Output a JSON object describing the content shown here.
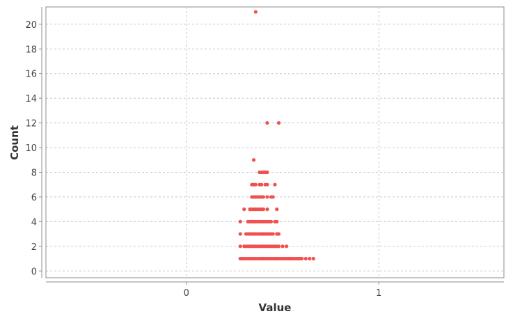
{
  "chart_data": {
    "type": "scatter",
    "title": "",
    "xlabel": "Value",
    "ylabel": "Count",
    "xlim": [
      -0.73,
      1.65
    ],
    "ylim": [
      -0.55,
      21.4
    ],
    "x_ticks": [
      "0",
      "1"
    ],
    "x_tick_values": [
      0,
      1
    ],
    "y_ticks": [
      "0",
      "2",
      "4",
      "6",
      "8",
      "10",
      "12",
      "14",
      "16",
      "18",
      "20"
    ],
    "y_tick_values": [
      0,
      2,
      4,
      6,
      8,
      10,
      12,
      14,
      16,
      18,
      20
    ],
    "grid": true,
    "legend": "none",
    "point_color": "#f05050",
    "series": [
      {
        "values": [
          {
            "count": 21,
            "x": [
              0.36
            ]
          },
          {
            "count": 12,
            "x": [
              0.42,
              0.48
            ]
          },
          {
            "count": 9,
            "x": [
              0.35
            ]
          },
          {
            "count": 8,
            "x": [
              0.38,
              0.39,
              0.4,
              0.41,
              0.42
            ]
          },
          {
            "count": 7,
            "x": [
              0.34,
              0.35,
              0.36,
              0.38,
              0.39,
              0.41,
              0.42,
              0.46
            ]
          },
          {
            "count": 6,
            "x": [
              0.34,
              0.35,
              0.36,
              0.37,
              0.38,
              0.39,
              0.4,
              0.42,
              0.44,
              0.45
            ]
          },
          {
            "count": 5,
            "x": [
              0.3,
              0.33,
              0.34,
              0.35,
              0.36,
              0.37,
              0.38,
              0.39,
              0.4,
              0.42,
              0.47
            ]
          },
          {
            "count": 4,
            "x": [
              0.28,
              0.32,
              0.33,
              0.34,
              0.35,
              0.36,
              0.37,
              0.38,
              0.39,
              0.4,
              0.41,
              0.42,
              0.43,
              0.44,
              0.46,
              0.47
            ]
          },
          {
            "count": 3,
            "x": [
              0.28,
              0.31,
              0.32,
              0.33,
              0.34,
              0.35,
              0.36,
              0.37,
              0.38,
              0.39,
              0.4,
              0.41,
              0.42,
              0.43,
              0.44,
              0.45,
              0.47,
              0.48
            ]
          },
          {
            "count": 2,
            "x": [
              0.28,
              0.3,
              0.31,
              0.32,
              0.33,
              0.34,
              0.35,
              0.36,
              0.37,
              0.38,
              0.39,
              0.4,
              0.41,
              0.42,
              0.43,
              0.44,
              0.45,
              0.46,
              0.47,
              0.48,
              0.5,
              0.52
            ]
          },
          {
            "count": 1,
            "x": [
              0.28,
              0.29,
              0.3,
              0.31,
              0.32,
              0.33,
              0.34,
              0.35,
              0.36,
              0.37,
              0.38,
              0.39,
              0.4,
              0.41,
              0.42,
              0.43,
              0.44,
              0.45,
              0.46,
              0.47,
              0.48,
              0.49,
              0.5,
              0.51,
              0.52,
              0.53,
              0.54,
              0.55,
              0.56,
              0.57,
              0.58,
              0.59,
              0.6,
              0.62,
              0.64,
              0.66
            ]
          }
        ]
      }
    ]
  }
}
